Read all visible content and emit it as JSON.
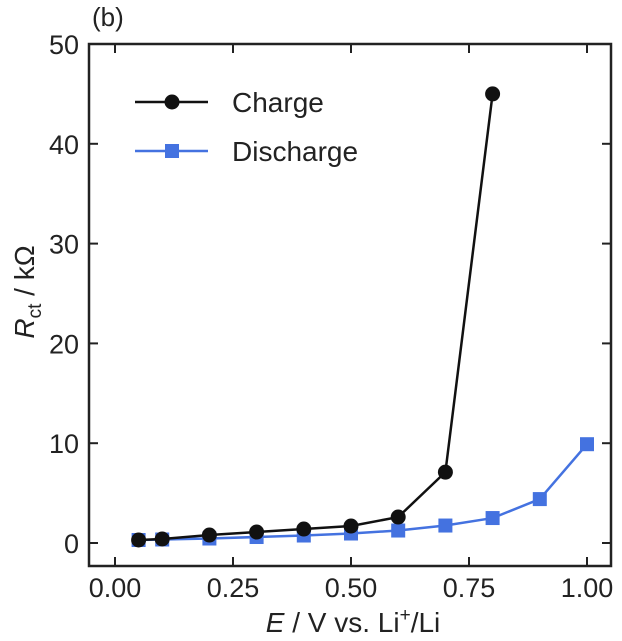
{
  "chart_data": {
    "type": "line",
    "panel_label": "(b)",
    "xlabel": {
      "italic": "E",
      "rest": " / V vs. Li",
      "sup": "+",
      "tail": "/Li"
    },
    "ylabel": {
      "italic": "R",
      "sub": "ct",
      "rest": " / kΩ"
    },
    "xlim": [
      0.0,
      1.0
    ],
    "ylim": [
      0,
      50
    ],
    "xticks": [
      0.0,
      0.25,
      0.5,
      0.75,
      1.0
    ],
    "xtick_labels": [
      "0.00",
      "0.25",
      "0.50",
      "0.75",
      "1.00"
    ],
    "yticks": [
      0,
      10,
      20,
      30,
      40,
      50
    ],
    "ytick_labels": [
      "0",
      "10",
      "20",
      "30",
      "40",
      "50"
    ],
    "legend_position": "top-left",
    "grid": false,
    "series": [
      {
        "name": "Charge",
        "marker": "circle",
        "color": "#111111",
        "x": [
          0.05,
          0.1,
          0.2,
          0.3,
          0.4,
          0.5,
          0.6,
          0.7,
          0.8
        ],
        "y": [
          0.3,
          0.4,
          0.8,
          1.1,
          1.4,
          1.7,
          2.6,
          7.1,
          45.0
        ]
      },
      {
        "name": "Discharge",
        "marker": "square",
        "color": "#4472e0",
        "x": [
          0.05,
          0.1,
          0.2,
          0.3,
          0.4,
          0.5,
          0.6,
          0.7,
          0.8,
          0.9,
          1.0
        ],
        "y": [
          0.3,
          0.35,
          0.45,
          0.6,
          0.75,
          0.95,
          1.25,
          1.75,
          2.5,
          4.4,
          9.9
        ]
      }
    ]
  }
}
